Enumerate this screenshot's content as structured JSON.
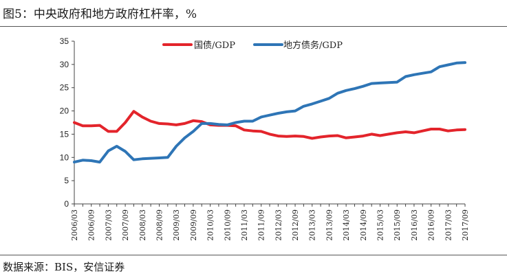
{
  "title": "图5：中央政府和地方政府杠杆率，%",
  "source": "数据来源：BIS，安信证券",
  "colors": {
    "central": "#e3242b",
    "local": "#2e75b6",
    "axis": "#444444"
  },
  "chart_data": {
    "type": "line",
    "title": "图5：中央政府和地方政府杠杆率，%",
    "xlabel": "",
    "ylabel": "",
    "ylim": [
      0,
      35
    ],
    "yticks": [
      0,
      5,
      10,
      15,
      20,
      25,
      30,
      35
    ],
    "legend_position": "top-center",
    "x": [
      "2006/03",
      "2006/06",
      "2006/09",
      "2006/12",
      "2007/03",
      "2007/06",
      "2007/09",
      "2007/12",
      "2008/03",
      "2008/06",
      "2008/09",
      "2008/12",
      "2009/03",
      "2009/06",
      "2009/09",
      "2009/12",
      "2010/03",
      "2010/06",
      "2010/09",
      "2010/12",
      "2011/03",
      "2011/06",
      "2011/09",
      "2011/12",
      "2012/03",
      "2012/06",
      "2012/09",
      "2012/12",
      "2013/03",
      "2013/06",
      "2013/09",
      "2013/12",
      "2014/03",
      "2014/06",
      "2014/09",
      "2014/12",
      "2015/03",
      "2015/06",
      "2015/09",
      "2015/12",
      "2016/03",
      "2016/06",
      "2016/09",
      "2016/12",
      "2017/03",
      "2017/06",
      "2017/09"
    ],
    "xtick_labels": [
      "2006/03",
      "2006/09",
      "2007/03",
      "2007/09",
      "2008/03",
      "2008/09",
      "2009/03",
      "2009/09",
      "2010/03",
      "2010/09",
      "2011/03",
      "2011/09",
      "2012/03",
      "2012/09",
      "2013/03",
      "2013/09",
      "2014/03",
      "2014/09",
      "2015/03",
      "2015/09",
      "2016/03",
      "2016/09",
      "2017/03",
      "2017/09"
    ],
    "series": [
      {
        "name": "国债/GDP",
        "color": "#e3242b",
        "values": [
          17.5,
          16.8,
          16.8,
          16.9,
          15.6,
          15.6,
          17.5,
          19.9,
          18.7,
          17.8,
          17.3,
          17.2,
          17.0,
          17.3,
          17.9,
          17.7,
          17.0,
          16.9,
          16.9,
          16.8,
          15.9,
          15.7,
          15.6,
          15.0,
          14.6,
          14.5,
          14.6,
          14.5,
          14.1,
          14.4,
          14.6,
          14.7,
          14.2,
          14.4,
          14.6,
          15.0,
          14.7,
          15.0,
          15.3,
          15.5,
          15.3,
          15.7,
          16.1,
          16.1,
          15.7,
          15.9,
          16.0
        ]
      },
      {
        "name": "地方债务/GDP",
        "color": "#2e75b6",
        "values": [
          9.0,
          9.4,
          9.3,
          9.0,
          11.4,
          12.4,
          11.3,
          9.5,
          9.7,
          9.8,
          9.9,
          10.0,
          12.4,
          14.2,
          15.6,
          17.3,
          17.3,
          17.1,
          17.0,
          17.5,
          17.8,
          17.8,
          18.7,
          19.1,
          19.5,
          19.8,
          20.0,
          21.0,
          21.5,
          22.1,
          22.7,
          23.8,
          24.4,
          24.8,
          25.3,
          25.9,
          26.0,
          26.1,
          26.2,
          27.4,
          27.8,
          28.1,
          28.4,
          29.5,
          29.9,
          30.3,
          30.4
        ]
      }
    ]
  }
}
